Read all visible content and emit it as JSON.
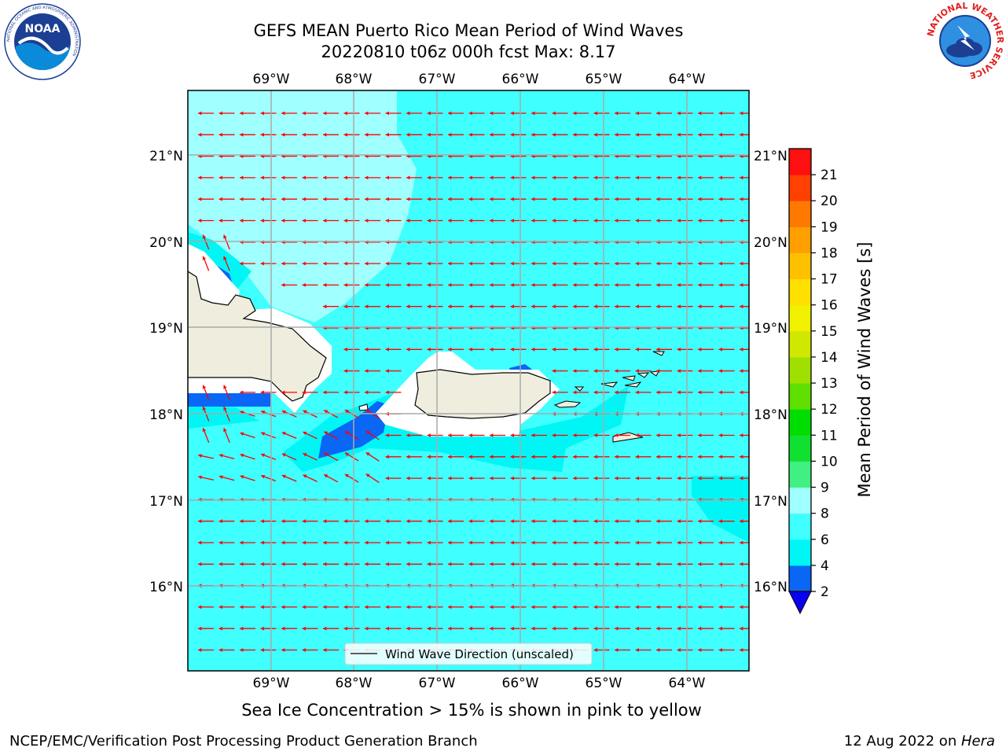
{
  "title_line1": "GEFS MEAN Puerto Rico Mean Period of Wind Waves",
  "title_line2": "20220810 t06z 000h fcst   Max: 8.17",
  "map": {
    "lon_labels": [
      "69°W",
      "68°W",
      "67°W",
      "66°W",
      "65°W",
      "64°W"
    ],
    "lat_labels": [
      "21°N",
      "20°N",
      "19°N",
      "18°N",
      "17°N",
      "16°N"
    ],
    "legend_label": "Wind Wave Direction (unscaled)",
    "arrow_color": "#ff0000",
    "land_color": "#efedde"
  },
  "colorbar": {
    "label": "Mean Period of Wind Waves [s]",
    "ticks": [
      "2",
      "4",
      "6",
      "8",
      "9",
      "10",
      "11",
      "12",
      "13",
      "14",
      "15",
      "16",
      "17",
      "18",
      "19",
      "20",
      "21"
    ],
    "colors": [
      "#0a66f4",
      "#00f5f5",
      "#40ffff",
      "#a0ffff",
      "#40f080",
      "#10e030",
      "#00dd00",
      "#60e000",
      "#a0e000",
      "#d0e800",
      "#f0f000",
      "#ffe000",
      "#ffc000",
      "#ffa000",
      "#ff7800",
      "#ff4000",
      "#ff1010"
    ],
    "under_color": "#0a00f0"
  },
  "sea_ice_note": "Sea Ice Concentration > 15% is shown in pink to yellow",
  "footer_left": "NCEP/EMC/Verification Post Processing Product Generation Branch",
  "footer_date": "12 Aug 2022 on ",
  "footer_host": "Hera",
  "logos": {
    "noaa_text": "NOAA",
    "noaa_ring": "NATIONAL OCEANIC AND ATMOSPHERIC ADMINISTRATION",
    "nws_ring": "NATIONAL WEATHER SERVICE"
  }
}
